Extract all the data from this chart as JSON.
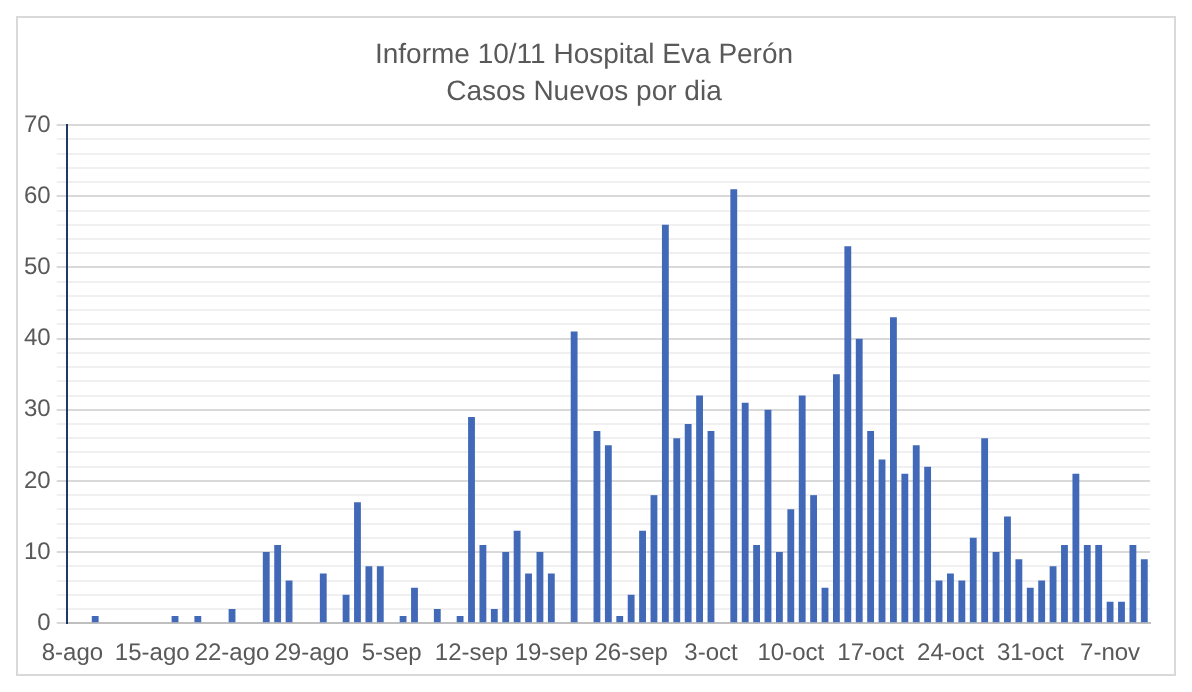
{
  "chart_data": {
    "type": "bar",
    "title": "Informe 10/11 Hospital Eva Perón",
    "subtitle": "Casos Nuevos por dia",
    "categories": [
      "8-ago",
      null,
      null,
      null,
      null,
      null,
      null,
      "15-ago",
      null,
      null,
      null,
      null,
      null,
      null,
      "22-ago",
      null,
      null,
      null,
      null,
      null,
      null,
      "29-ago",
      null,
      null,
      null,
      null,
      null,
      null,
      "5-sep",
      null,
      null,
      null,
      null,
      null,
      null,
      "12-sep",
      null,
      null,
      null,
      null,
      null,
      null,
      "19-sep",
      null,
      null,
      null,
      null,
      null,
      null,
      "26-sep",
      null,
      null,
      null,
      null,
      null,
      null,
      "3-oct",
      null,
      null,
      null,
      null,
      null,
      null,
      "10-oct",
      null,
      null,
      null,
      null,
      null,
      null,
      "17-oct",
      null,
      null,
      null,
      null,
      null,
      null,
      "24-oct",
      null,
      null,
      null,
      null,
      null,
      null,
      "31-oct",
      null,
      null,
      null,
      null,
      null,
      null,
      "7-nov",
      null,
      null,
      null
    ],
    "values": [
      0,
      0,
      1,
      0,
      0,
      0,
      0,
      0,
      0,
      1,
      0,
      1,
      0,
      0,
      2,
      0,
      0,
      10,
      11,
      6,
      0,
      0,
      7,
      0,
      4,
      17,
      8,
      8,
      0,
      1,
      5,
      0,
      2,
      0,
      1,
      29,
      11,
      2,
      10,
      13,
      7,
      10,
      7,
      0,
      41,
      0,
      27,
      25,
      1,
      4,
      13,
      18,
      56,
      26,
      28,
      32,
      27,
      0,
      61,
      31,
      11,
      30,
      10,
      16,
      32,
      18,
      5,
      35,
      53,
      40,
      27,
      23,
      43,
      21,
      25,
      22,
      6,
      7,
      6,
      12,
      26,
      10,
      15,
      9,
      5,
      6,
      8,
      11,
      21,
      11,
      11,
      3,
      3,
      11,
      9
    ],
    "color": "#4169b8",
    "ylim": [
      0,
      70
    ],
    "yticks": [
      0,
      {
        "value": 2,
        "label": null
      },
      {
        "value": 4,
        "label": null
      },
      {
        "value": 6,
        "label": null
      },
      {
        "value": 8,
        "label": null
      },
      10,
      {
        "value": 12,
        "label": null
      },
      {
        "value": 14,
        "label": null
      },
      {
        "value": 16,
        "label": null
      },
      {
        "value": 18,
        "label": null
      },
      20,
      {
        "value": 22,
        "label": null
      },
      {
        "value": 24,
        "label": null
      },
      {
        "value": 26,
        "label": null
      },
      {
        "value": 28,
        "label": null
      },
      30,
      {
        "value": 32,
        "label": null
      },
      {
        "value": 34,
        "label": null
      },
      {
        "value": 36,
        "label": null
      },
      {
        "value": 38,
        "label": null
      },
      40,
      {
        "value": 42,
        "label": null
      },
      {
        "value": 44,
        "label": null
      },
      {
        "value": 46,
        "label": null
      },
      {
        "value": 48,
        "label": null
      },
      50,
      {
        "value": 52,
        "label": null
      },
      {
        "value": 54,
        "label": null
      },
      {
        "value": 56,
        "label": null
      },
      {
        "value": 58,
        "label": null
      },
      60,
      {
        "value": 62,
        "label": null
      },
      {
        "value": 64,
        "label": null
      },
      {
        "value": 66,
        "label": null
      },
      {
        "value": 68,
        "label": null
      },
      70
    ],
    "grid": "y"
  }
}
